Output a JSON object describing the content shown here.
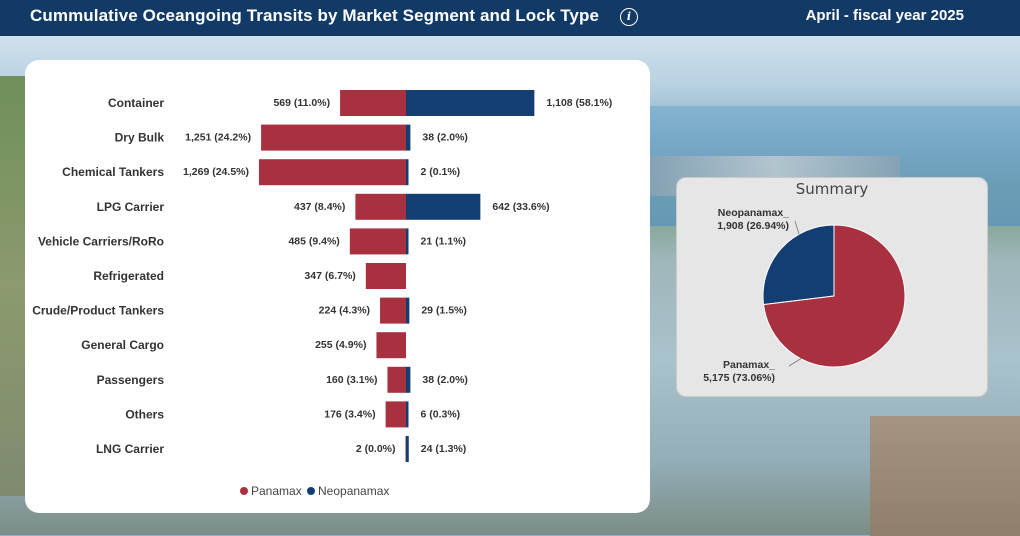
{
  "header": {
    "title": "Cummulative Oceangoing Transits by Market Segment and Lock Type",
    "period": "April - fiscal year 2025",
    "info_icon": "info-icon"
  },
  "colors": {
    "panamax": "#a8303f",
    "neopanamax": "#123e73",
    "header_bg": "#123a66"
  },
  "chart_data": [
    {
      "type": "bar",
      "orientation": "horizontal-diverging",
      "categories": [
        "Container",
        "Dry Bulk",
        "Chemical Tankers",
        "LPG Carrier",
        "Vehicle Carriers/RoRo",
        "Refrigerated",
        "Crude/Product Tankers",
        "General Cargo",
        "Passengers",
        "Others",
        "LNG Carrier"
      ],
      "series": [
        {
          "name": "Panamax",
          "values": [
            569,
            1251,
            1269,
            437,
            485,
            347,
            224,
            255,
            160,
            176,
            2
          ],
          "labels": [
            "569 (11.0%)",
            "1,251 (24.2%)",
            "1,269 (24.5%)",
            "437 (8.4%)",
            "485 (9.4%)",
            "347 (6.7%)",
            "224 (4.3%)",
            "255 (4.9%)",
            "160 (3.1%)",
            "176 (3.4%)",
            "2 (0.0%)"
          ]
        },
        {
          "name": "Neopanamax",
          "values": [
            1108,
            38,
            2,
            642,
            21,
            0,
            29,
            0,
            38,
            6,
            24
          ],
          "labels": [
            "1,108 (58.1%)",
            "38 (2.0%)",
            "2 (0.1%)",
            "642 (33.6%)",
            "21 (1.1%)",
            "",
            "29 (1.5%)",
            "",
            "38 (2.0%)",
            "6 (0.3%)",
            "24 (1.3%)"
          ]
        }
      ],
      "legend": "bottom-center",
      "grid": false
    },
    {
      "type": "pie",
      "title": "Summary",
      "slices": [
        {
          "name": "Neopanamax_",
          "value": 1908,
          "label": "1,908 (26.94%)"
        },
        {
          "name": "Panamax_",
          "value": 5175,
          "label": "5,175 (73.06%)"
        }
      ]
    }
  ]
}
